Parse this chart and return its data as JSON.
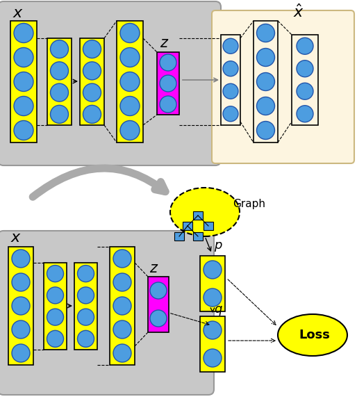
{
  "fig_width": 5.14,
  "fig_height": 5.74,
  "bg_color": "#ffffff",
  "gray_box_color": "#c8c8c8",
  "yellow_color": "#ffff00",
  "magenta_color": "#ff00ff",
  "blue_circle_color": "#4d9de0",
  "beige_color": "#fdf5e0",
  "arrow_color": "#808080",
  "loss_circle_color": "#ffff00",
  "graph_ellipse_color": "#ffff00"
}
